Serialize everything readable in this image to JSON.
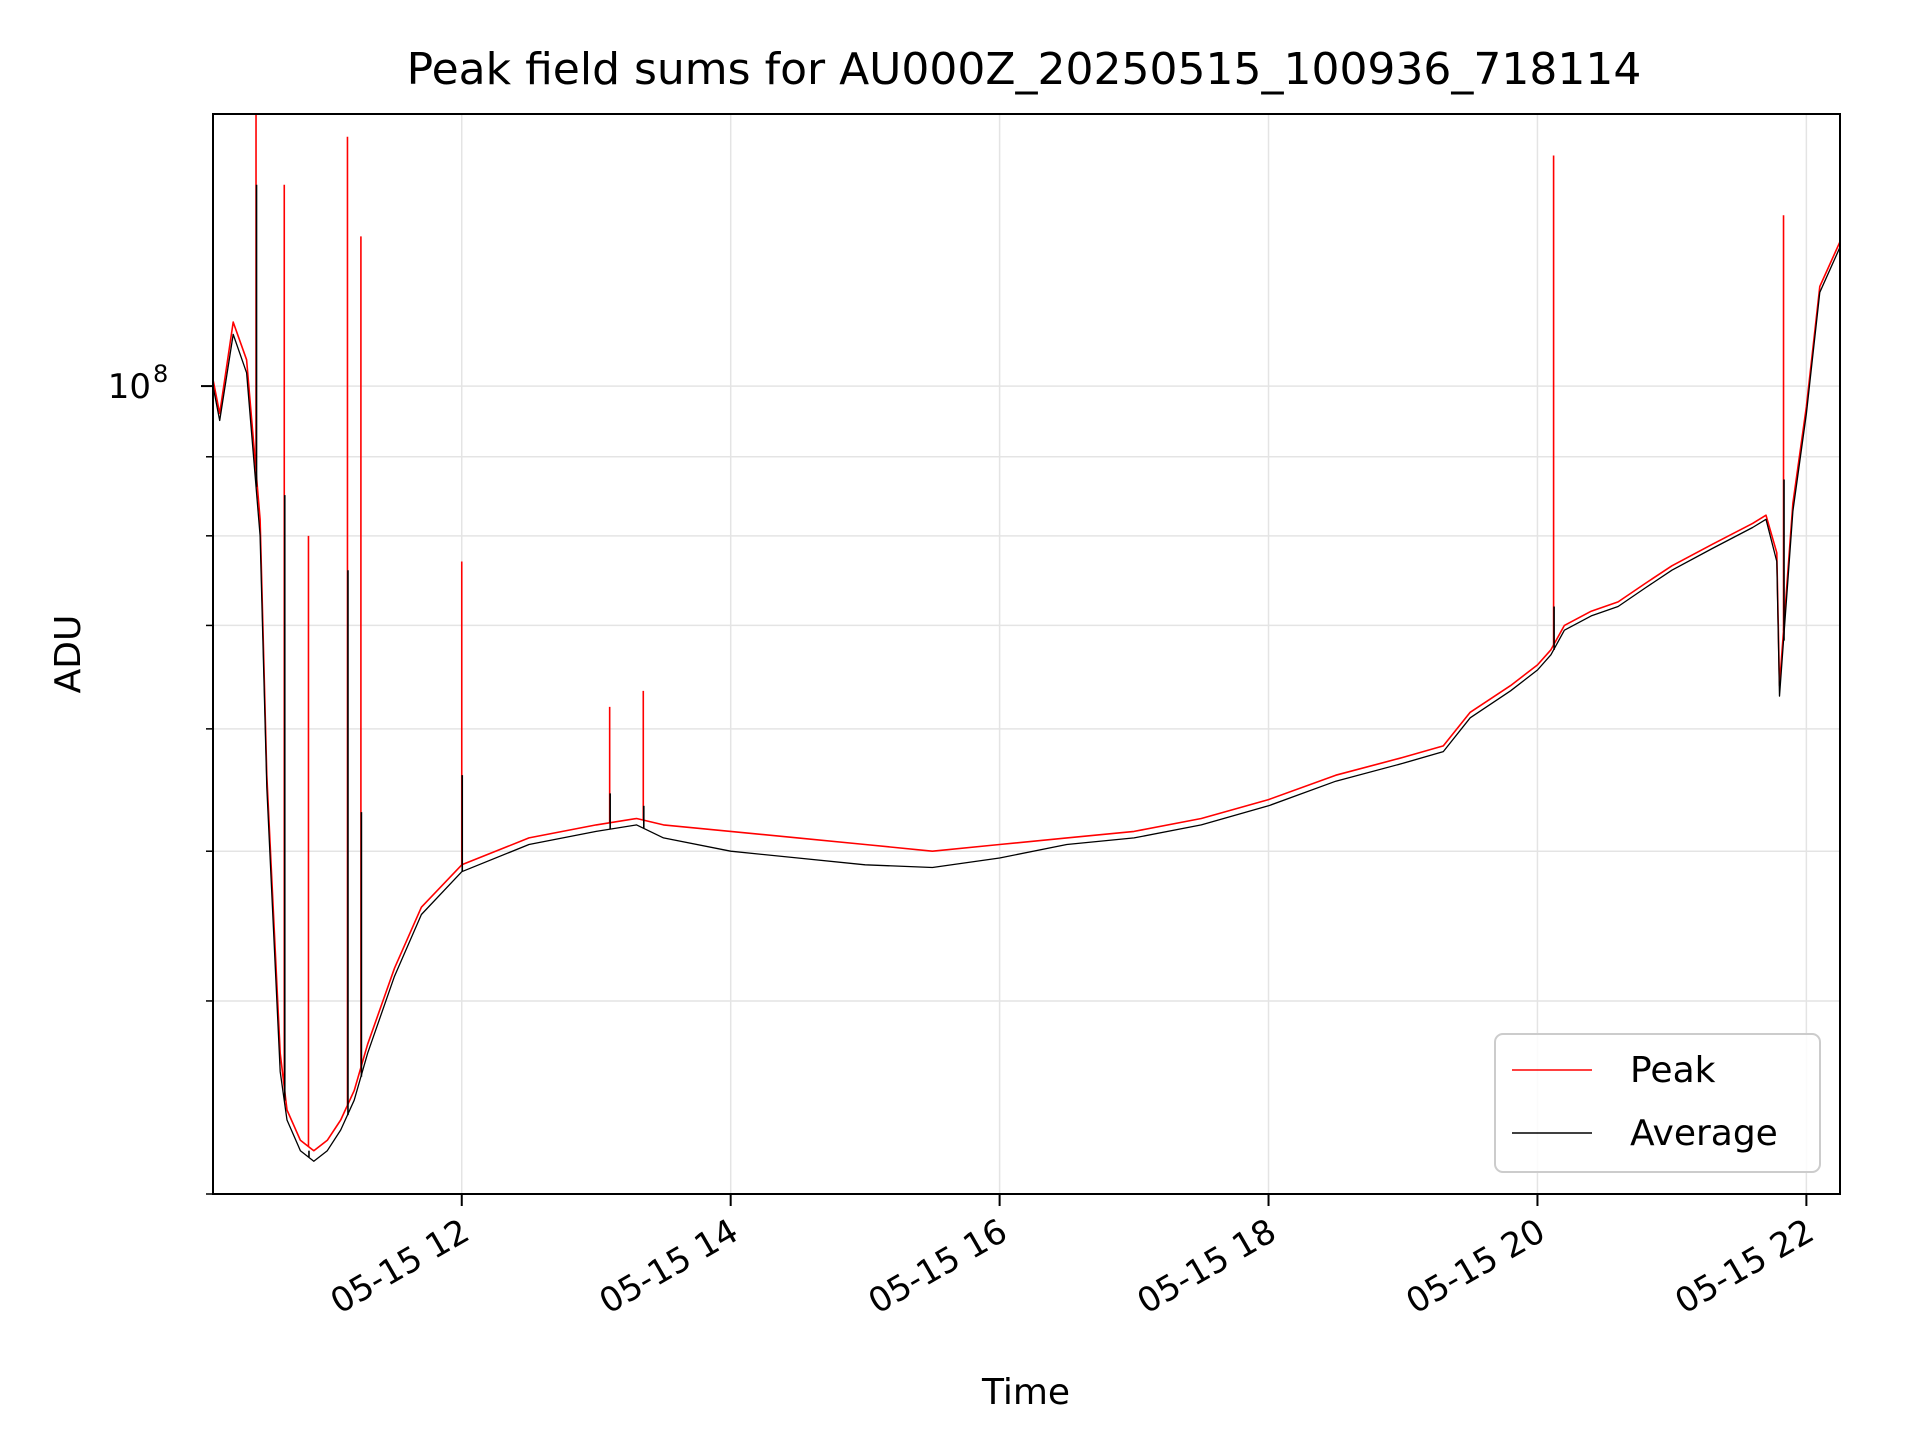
{
  "chart_data": {
    "type": "line",
    "title": "Peak field sums for AU000Z_20250515_100936_718114",
    "xlabel": "Time",
    "ylabel": "ADU",
    "y_scale": "log",
    "xlim_hours": [
      10.15,
      22.25
    ],
    "ylim": [
      30000000,
      150000000
    ],
    "x_tick_hours": [
      12,
      14,
      16,
      18,
      20,
      22
    ],
    "x_tick_labels": [
      "05-15 12",
      "05-15 14",
      "05-15 16",
      "05-15 18",
      "05-15 20",
      "05-15 22"
    ],
    "y_major_ticks": [
      100000000
    ],
    "y_major_label_base": "10",
    "y_major_label_exp": "8",
    "y_minor_ticks": [
      30000000,
      40000000,
      50000000,
      60000000,
      70000000,
      80000000,
      90000000
    ],
    "grid": true,
    "legend_position": "lower-right",
    "series": [
      {
        "name": "Peak",
        "color": "#ff0000",
        "x": [
          10.15,
          10.2,
          10.3,
          10.4,
          10.5,
          10.55,
          10.65,
          10.7,
          10.8,
          10.9,
          11.0,
          11.1,
          11.2,
          11.3,
          11.5,
          11.7,
          12.0,
          12.5,
          13.0,
          13.3,
          13.5,
          14.0,
          14.5,
          15.0,
          15.5,
          16.0,
          16.5,
          17.0,
          17.5,
          18.0,
          18.5,
          19.0,
          19.3,
          19.5,
          19.8,
          20.0,
          20.1,
          20.2,
          20.4,
          20.6,
          20.8,
          21.0,
          21.3,
          21.6,
          21.7,
          21.78,
          21.8,
          21.9,
          22.0,
          22.1,
          22.25
        ],
        "y": [
          101000000,
          96000000,
          110000000,
          104000000,
          82000000,
          56000000,
          37000000,
          34000000,
          32500000,
          32000000,
          32500000,
          33500000,
          35000000,
          37500000,
          42000000,
          46000000,
          49000000,
          51000000,
          52000000,
          52500000,
          52000000,
          51500000,
          51000000,
          50500000,
          50000000,
          50500000,
          51000000,
          51500000,
          52500000,
          54000000,
          56000000,
          57500000,
          58500000,
          61500000,
          64000000,
          66000000,
          67500000,
          70000000,
          71500000,
          72500000,
          74500000,
          76500000,
          79000000,
          81500000,
          82500000,
          78000000,
          64000000,
          84000000,
          97000000,
          116000000,
          124000000
        ]
      },
      {
        "name": "Average",
        "color": "#000000",
        "x": [
          10.15,
          10.2,
          10.3,
          10.4,
          10.5,
          10.55,
          10.65,
          10.7,
          10.8,
          10.9,
          11.0,
          11.1,
          11.2,
          11.3,
          11.5,
          11.7,
          12.0,
          12.5,
          13.0,
          13.3,
          13.5,
          14.0,
          14.5,
          15.0,
          15.5,
          16.0,
          16.5,
          17.0,
          17.5,
          18.0,
          18.5,
          19.0,
          19.3,
          19.5,
          19.8,
          20.0,
          20.1,
          20.2,
          20.4,
          20.6,
          20.8,
          21.0,
          21.3,
          21.6,
          21.7,
          21.78,
          21.8,
          21.9,
          22.0,
          22.1,
          22.25
        ],
        "y": [
          100000000,
          95000000,
          108000000,
          102000000,
          80000000,
          55000000,
          36000000,
          33500000,
          32000000,
          31500000,
          32000000,
          33000000,
          34500000,
          37000000,
          41500000,
          45500000,
          48500000,
          50500000,
          51500000,
          52000000,
          51000000,
          50000000,
          49500000,
          49000000,
          48800000,
          49500000,
          50500000,
          51000000,
          52000000,
          53500000,
          55500000,
          57000000,
          58000000,
          61000000,
          63500000,
          65500000,
          67000000,
          69500000,
          71000000,
          72000000,
          74000000,
          76000000,
          78500000,
          81000000,
          82000000,
          77000000,
          63000000,
          83000000,
          96000000,
          115000000,
          123000000
        ]
      }
    ],
    "spikes": [
      {
        "x": 10.47,
        "peak": 150000000,
        "average": 135000000
      },
      {
        "x": 10.68,
        "peak": 135000000,
        "average": 85000000
      },
      {
        "x": 10.86,
        "peak": 80000000,
        "average": 32000000
      },
      {
        "x": 11.15,
        "peak": 145000000,
        "average": 76000000
      },
      {
        "x": 11.25,
        "peak": 125000000,
        "average": 53000000
      },
      {
        "x": 12.0,
        "peak": 77000000,
        "average": 56000000
      },
      {
        "x": 13.1,
        "peak": 62000000,
        "average": 54500000
      },
      {
        "x": 13.35,
        "peak": 63500000,
        "average": 53500000
      },
      {
        "x": 20.12,
        "peak": 141000000,
        "average": 72000000
      },
      {
        "x": 21.83,
        "peak": 129000000,
        "average": 87000000
      }
    ]
  }
}
